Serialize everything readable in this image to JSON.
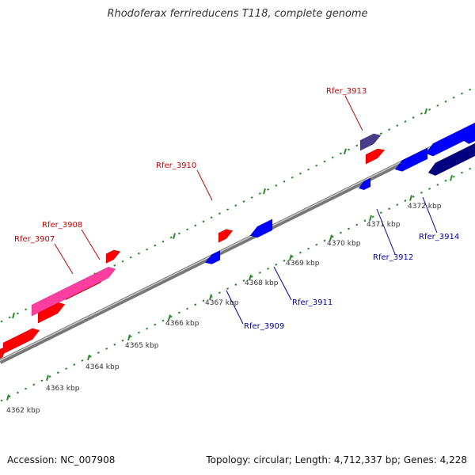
{
  "title": "Rhodoferax ferrireducens T118, complete genome",
  "footer": {
    "accession": "Accession: NC_007908",
    "summary": "Topology: circular; Length: 4,712,337 bp; Genes: 4,228"
  },
  "ticks": [
    "4362 kbp",
    "4363 kbp",
    "4364 kbp",
    "4365 kbp",
    "4366 kbp",
    "4367 kbp",
    "4368 kbp",
    "4369 kbp",
    "4370 kbp",
    "4371 kbp",
    "4372 kbp"
  ],
  "colors": {
    "forward": "#ff0000",
    "reverse": "#0000ff",
    "forward_label": "#cc0000",
    "reverse_label": "#0000aa",
    "highlight": "#ff3fa0",
    "dark_blue": "#000080",
    "slate": "#483d8b",
    "tick": "#2a8a2a",
    "backbone": "#888888"
  },
  "genes": [
    "Rfer_3907",
    "Rfer_3908",
    "Rfer_3909",
    "Rfer_3910",
    "Rfer_3911",
    "Rfer_3912",
    "Rfer_3913",
    "Rfer_3914"
  ]
}
